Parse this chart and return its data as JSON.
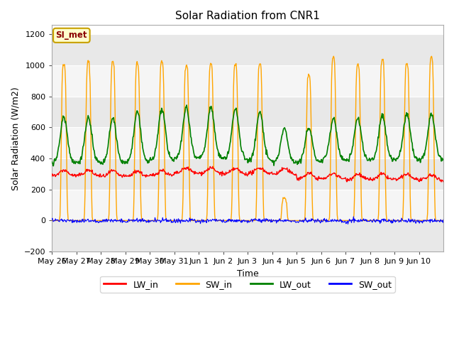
{
  "title": "Solar Radiation from CNR1",
  "xlabel": "Time",
  "ylabel": "Solar Radiation (W/m2)",
  "ylim": [
    -200,
    1260
  ],
  "yticks": [
    -200,
    0,
    200,
    400,
    600,
    800,
    1000,
    1200
  ],
  "fig_bg_color": "#ffffff",
  "plot_bg_color": "#ffffff",
  "band_colors": [
    "#e8e8e8",
    "#f5f5f5"
  ],
  "grid_color": "#ffffff",
  "annotation_text": "SI_met",
  "annotation_color": "#8b0000",
  "annotation_bg": "#ffffcc",
  "annotation_border": "#c8a000",
  "tick_labels": [
    "May 26",
    "May 27",
    "May 28",
    "May 29",
    "May 30",
    "May 31",
    "Jun 1",
    "Jun 2",
    "Jun 3",
    "Jun 4",
    "Jun 5",
    "Jun 6",
    "Jun 7",
    "Jun 8",
    "Jun 9",
    "Jun 10"
  ],
  "n_days": 16,
  "pts_per_day": 48,
  "lw_in_color": "red",
  "sw_in_color": "orange",
  "lw_out_color": "green",
  "sw_out_color": "blue"
}
